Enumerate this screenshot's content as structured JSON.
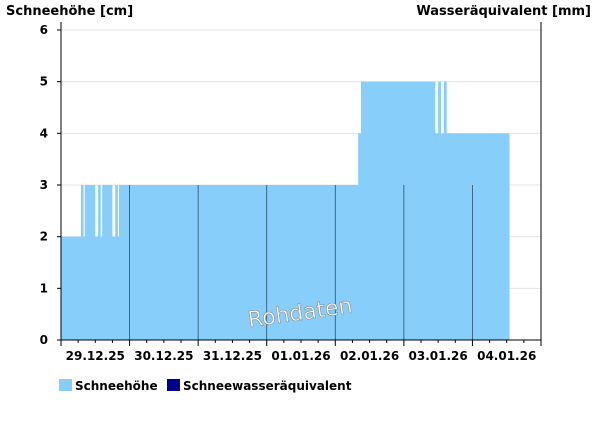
{
  "chart_data": {
    "type": "area",
    "ylabel_left": "Schneehöhe [cm]",
    "ylabel_right": "Wasseräquivalent [mm]",
    "ylim": [
      0,
      6
    ],
    "yticks": [
      0,
      1,
      2,
      3,
      4,
      5,
      6
    ],
    "xlim_hours": [
      0,
      168
    ],
    "x_labels": [
      "29.12.25",
      "30.12.25",
      "31.12.25",
      "01.01.26",
      "02.01.26",
      "03.01.26",
      "04.01.26"
    ],
    "watermark": "Rohdaten",
    "series": [
      {
        "name": "Schneehöhe",
        "color": "#87cefa",
        "note": "step values; x in hours since 29.12.25 00:00",
        "points": [
          [
            0,
            2
          ],
          [
            7,
            3
          ],
          [
            7.9,
            2
          ],
          [
            8.3,
            3
          ],
          [
            12,
            2
          ],
          [
            13,
            3
          ],
          [
            13.9,
            2
          ],
          [
            14.4,
            3
          ],
          [
            18,
            2
          ],
          [
            19,
            3
          ],
          [
            19.9,
            2
          ],
          [
            20.3,
            3
          ],
          [
            104,
            4
          ],
          [
            105,
            5
          ],
          [
            131,
            4
          ],
          [
            132,
            5
          ],
          [
            133,
            4
          ],
          [
            134,
            5
          ],
          [
            135,
            4
          ],
          [
            157,
            4
          ]
        ]
      },
      {
        "name": "Schneewasseräquivalent",
        "color": "#00008b",
        "points": []
      }
    ]
  }
}
